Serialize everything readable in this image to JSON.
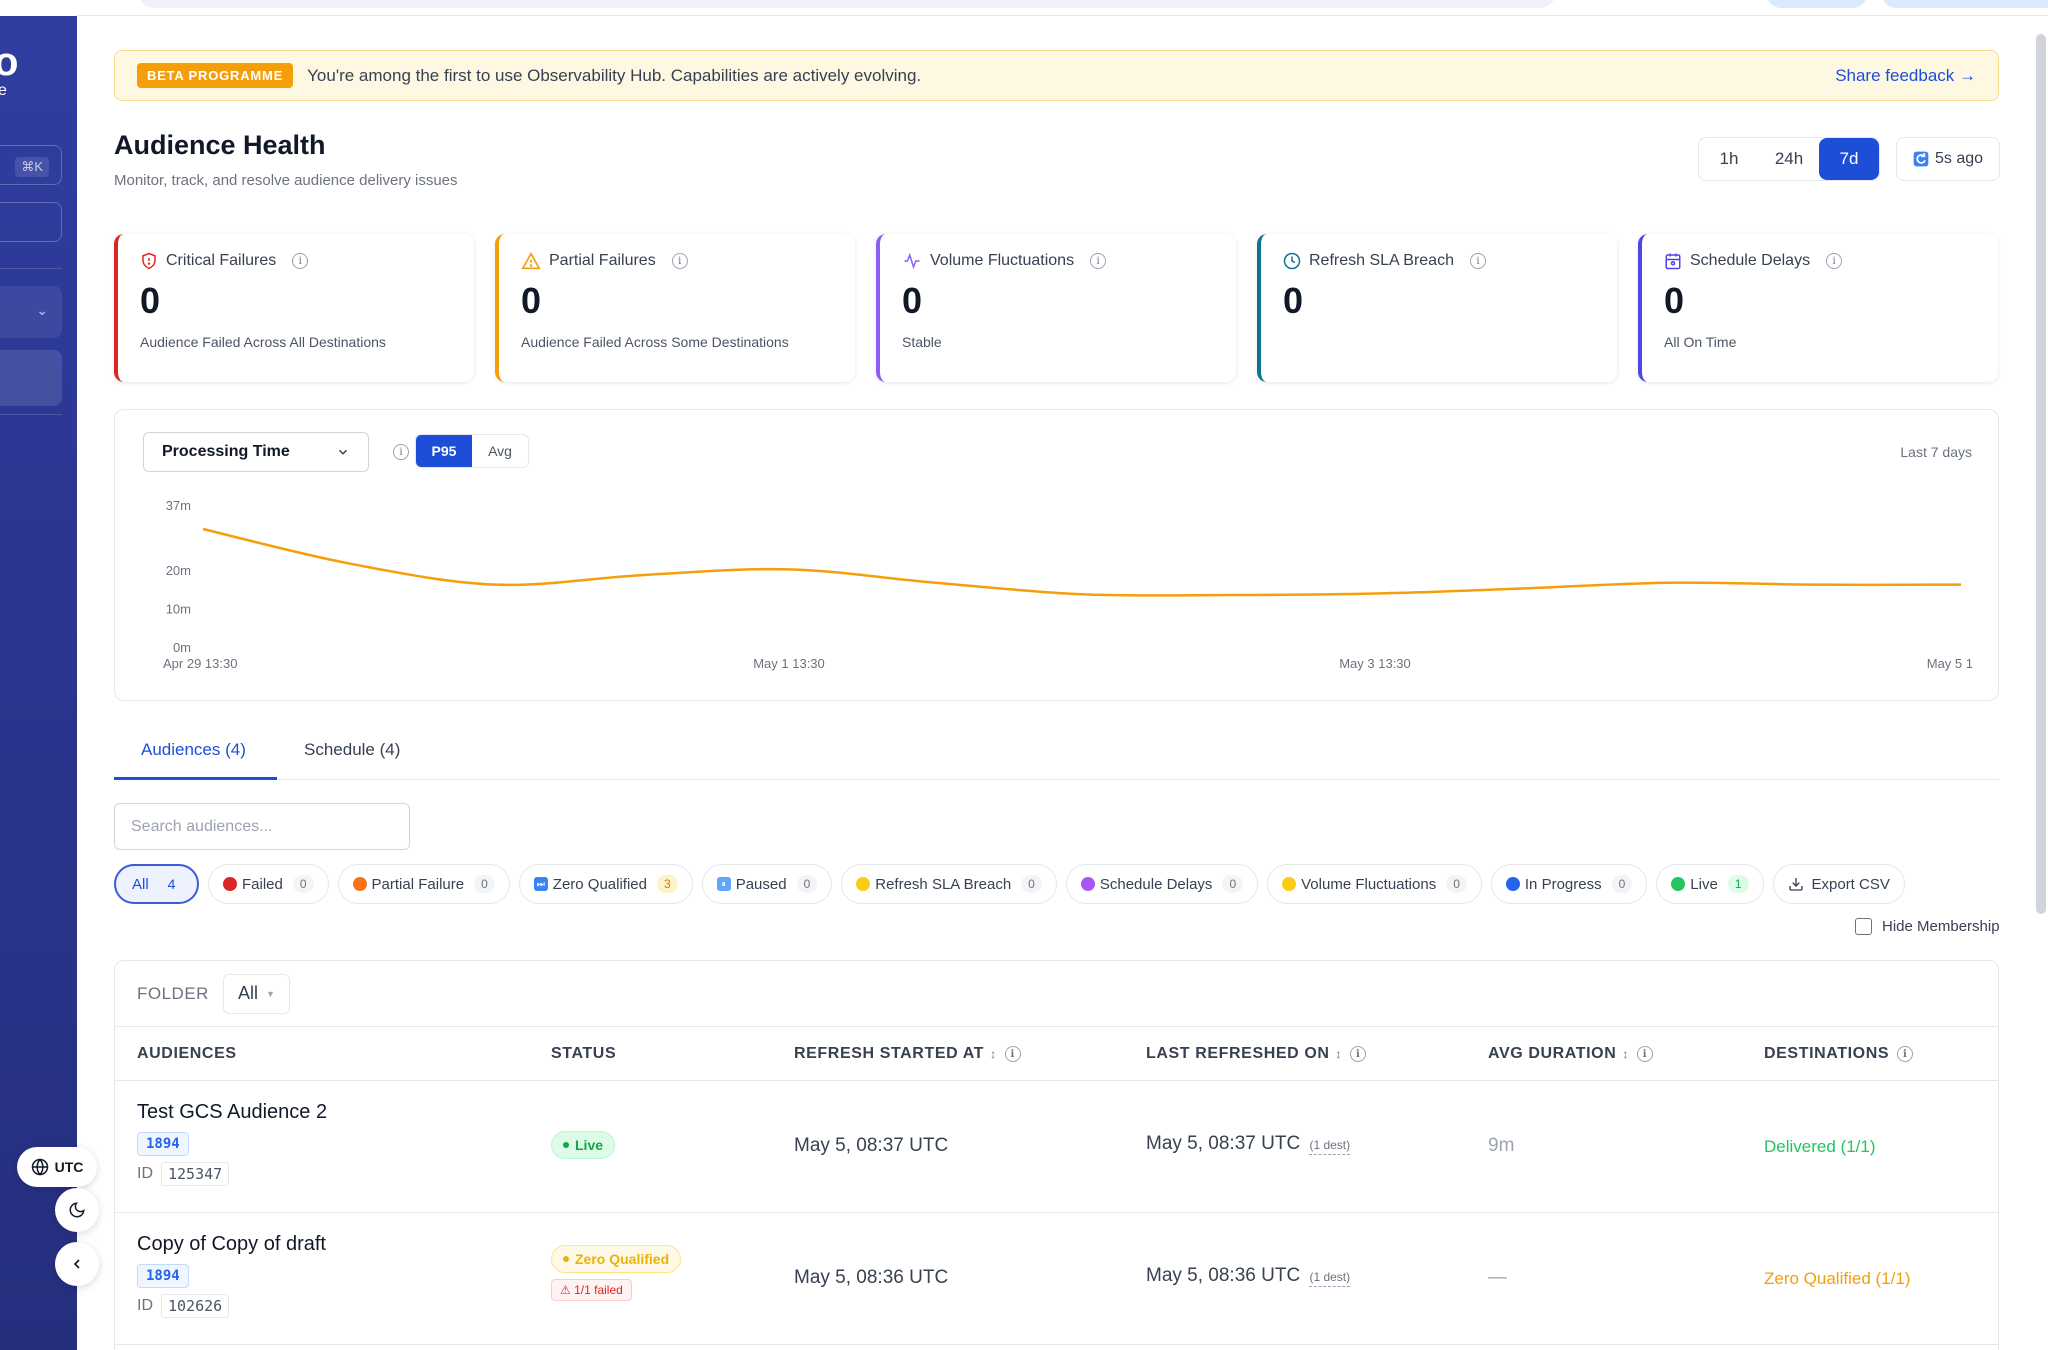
{
  "sidebar": {
    "logo": "o",
    "logo_sub": "e",
    "shortcut": "⌘K",
    "utc_label": "UTC"
  },
  "banner": {
    "tag": "BETA PROGRAMME",
    "text": "You're among the first to use Observability Hub. Capabilities are actively evolving.",
    "link": "Share feedback →"
  },
  "header": {
    "title": "Audience Health",
    "subtitle": "Monitor, track, and resolve audience delivery issues",
    "ranges": [
      "1h",
      "24h",
      "7d"
    ],
    "active_range": "7d",
    "refresh_label": "5s ago"
  },
  "cards": [
    {
      "title": "Critical Failures",
      "value": "0",
      "desc": "Audience Failed Across All Destinations",
      "color": "#dc2626",
      "icon": "shield-alert-icon"
    },
    {
      "title": "Partial Failures",
      "value": "0",
      "desc": "Audience Failed Across Some Destinations",
      "color": "#f59e0b",
      "icon": "warning-triangle-icon"
    },
    {
      "title": "Volume Fluctuations",
      "value": "0",
      "desc": "Stable",
      "color": "#8b5cf6",
      "icon": "activity-icon"
    },
    {
      "title": "Refresh SLA Breach",
      "value": "0",
      "desc": "",
      "color": "#0e7490",
      "icon": "clock-icon"
    },
    {
      "title": "Schedule Delays",
      "value": "0",
      "desc": "All On Time",
      "color": "#4f46e5",
      "icon": "calendar-icon"
    }
  ],
  "chart_panel": {
    "metric": "Processing Time",
    "aggregations": [
      "P95",
      "Avg"
    ],
    "active_aggregation": "P95",
    "period_label": "Last 7 days"
  },
  "chart_data": {
    "type": "line",
    "title": "",
    "xlabel": "",
    "ylabel": "",
    "y_ticks": [
      "37m",
      "20m",
      "10m",
      "0m"
    ],
    "y_tick_values": [
      37,
      20,
      10,
      0
    ],
    "ylim": [
      0,
      37
    ],
    "x_ticks": [
      "Apr 29 13:30",
      "May 1 13:30",
      "May 3 13:30",
      "May 5 1"
    ],
    "series": [
      {
        "color": "#f59e0b",
        "x": [
          0,
          0.5,
          1,
          1.5,
          2,
          2.5,
          3,
          3.5,
          4,
          4.5,
          5,
          5.5,
          6
        ],
        "values": [
          31,
          22,
          16.5,
          19,
          20.5,
          17,
          14,
          13.8,
          14.2,
          15.5,
          17,
          16.5,
          16.5
        ]
      }
    ],
    "grid": false
  },
  "tabs": [
    {
      "label": "Audiences (4)",
      "active": true
    },
    {
      "label": "Schedule (4)",
      "active": false
    }
  ],
  "search": {
    "placeholder": "Search audiences...",
    "value": ""
  },
  "filters": [
    {
      "label": "All",
      "count": "4",
      "active": true
    },
    {
      "label": "Failed",
      "count": "0",
      "dot": "#dc2626"
    },
    {
      "label": "Partial Failure",
      "count": "0",
      "dot": "#f97316"
    },
    {
      "label": "Zero Qualified",
      "count": "3",
      "sq": "#3b82f6",
      "sq_glyph": "⏭",
      "count_style": "orange"
    },
    {
      "label": "Paused",
      "count": "0",
      "sq": "#60a5fa",
      "sq_glyph": "⏸"
    },
    {
      "label": "Refresh SLA Breach",
      "count": "0",
      "dot": "#facc15"
    },
    {
      "label": "Schedule Delays",
      "count": "0",
      "dot": "#a855f7"
    },
    {
      "label": "Volume Fluctuations",
      "count": "0",
      "dot": "#facc15"
    },
    {
      "label": "In Progress",
      "count": "0",
      "dot": "#2563eb"
    },
    {
      "label": "Live",
      "count": "1",
      "dot": "#22c55e",
      "count_style": "green"
    }
  ],
  "export_label": "Export CSV",
  "hide_membership_label": "Hide Membership",
  "table": {
    "folder_label": "FOLDER",
    "folder_value": "All",
    "columns": [
      "AUDIENCES",
      "STATUS",
      "REFRESH STARTED AT",
      "LAST REFRESHED ON",
      "AVG DURATION",
      "DESTINATIONS"
    ],
    "rows": [
      {
        "name": "Test GCS Audience 2",
        "folder_id": "1894",
        "id_label": "ID",
        "id": "125347",
        "status": "Live",
        "started": "May 5, 08:37 UTC",
        "last_refreshed": "May 5, 08:37 UTC",
        "dest_note": "(1 dest)",
        "avg_duration": "9m",
        "destinations": "Delivered (1/1)"
      },
      {
        "name": "Copy of Copy of draft",
        "folder_id": "1894",
        "id_label": "ID",
        "id": "102626",
        "status": "Zero Qualified",
        "failed_note": "⚠ 1/1 failed",
        "started": "May 5, 08:36 UTC",
        "last_refreshed": "May 5, 08:36 UTC",
        "dest_note": "(1 dest)",
        "avg_duration": "—",
        "destinations": "Zero Qualified (1/1)"
      }
    ]
  }
}
